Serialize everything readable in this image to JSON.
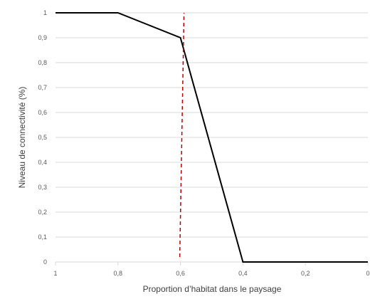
{
  "chart_data": {
    "type": "line",
    "xlabel": "Proportion d’habitat dans le paysage",
    "ylabel": "Niveau de connectivité (%)",
    "x_reversed": true,
    "xlim": [
      0,
      1
    ],
    "ylim": [
      0,
      1
    ],
    "x_ticks": [
      {
        "value": 1,
        "label": "1"
      },
      {
        "value": 0.8,
        "label": "0,8"
      },
      {
        "value": 0.6,
        "label": "0,6"
      },
      {
        "value": 0.4,
        "label": "0,4"
      },
      {
        "value": 0.2,
        "label": "0,2"
      },
      {
        "value": 0,
        "label": "0"
      }
    ],
    "y_ticks": [
      {
        "value": 0,
        "label": "0"
      },
      {
        "value": 0.1,
        "label": "0,1"
      },
      {
        "value": 0.2,
        "label": "0,2"
      },
      {
        "value": 0.3,
        "label": "0,3"
      },
      {
        "value": 0.4,
        "label": "0,4"
      },
      {
        "value": 0.5,
        "label": "0,5"
      },
      {
        "value": 0.6,
        "label": "0,6"
      },
      {
        "value": 0.7,
        "label": "0,7"
      },
      {
        "value": 0.8,
        "label": "0,8"
      },
      {
        "value": 0.9,
        "label": "0,9"
      },
      {
        "value": 1,
        "label": "1"
      }
    ],
    "grid": "horizontal",
    "series": [
      {
        "color": "#000000",
        "points": [
          {
            "x": 1,
            "y": 1
          },
          {
            "x": 0.8,
            "y": 1
          },
          {
            "x": 0.6,
            "y": 0.9
          },
          {
            "x": 0.4,
            "y": 0
          },
          {
            "x": 0,
            "y": 0
          }
        ]
      }
    ],
    "reference_line": {
      "x": 0.6,
      "color": "#c00000",
      "style": "dashed"
    }
  }
}
